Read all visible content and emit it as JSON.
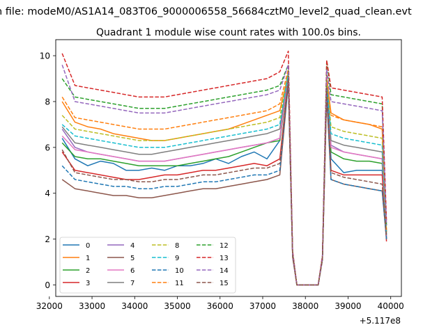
{
  "chart_data": {
    "type": "line",
    "suptitle": "n file: modeM0/AS1A14_083T06_9000006558_56684cztM0_level2_quad_clean.evt",
    "title": "Quadrant 1 module wise count rates with 100.0s bins.",
    "xlabel": "",
    "ylabel": "",
    "x_offset_label": "+5.117e8",
    "xlim": [
      32150,
      40250
    ],
    "ylim": [
      -0.5,
      10.7
    ],
    "xticks": [
      32000,
      33000,
      34000,
      35000,
      36000,
      37000,
      38000,
      39000,
      40000
    ],
    "yticks": [
      0,
      2,
      4,
      6,
      8,
      10
    ],
    "x": [
      32300,
      32600,
      32900,
      33200,
      33500,
      33800,
      34100,
      34400,
      34700,
      35000,
      35300,
      35600,
      35900,
      36200,
      36500,
      36800,
      37100,
      37400,
      37600,
      37700,
      37800,
      37900,
      38300,
      38400,
      38500,
      38600,
      38900,
      39200,
      39500,
      39800,
      39900
    ],
    "legend_position": "lower-left",
    "series": [
      {
        "name": "0",
        "color": "#1f77b4",
        "dash": "solid",
        "values": [
          6.4,
          5.5,
          5.2,
          5.4,
          5.3,
          5.0,
          5.0,
          5.1,
          5.0,
          5.2,
          5.2,
          5.3,
          5.5,
          5.3,
          5.6,
          5.8,
          5.5,
          6.3,
          9.1,
          1.3,
          0.0,
          0.0,
          0.0,
          1.2,
          8.8,
          5.5,
          4.9,
          5.0,
          5.0,
          5.0,
          2.0
        ]
      },
      {
        "name": "1",
        "color": "#ff7f0e",
        "dash": "solid",
        "values": [
          8.0,
          7.1,
          6.9,
          6.8,
          6.6,
          6.5,
          6.4,
          6.3,
          6.3,
          6.4,
          6.5,
          6.6,
          6.7,
          6.8,
          7.0,
          7.2,
          7.4,
          7.6,
          9.2,
          1.3,
          0.0,
          0.0,
          0.0,
          1.2,
          9.0,
          7.5,
          7.2,
          7.1,
          7.0,
          6.8,
          2.3
        ]
      },
      {
        "name": "2",
        "color": "#2ca02c",
        "dash": "solid",
        "values": [
          6.2,
          5.6,
          5.5,
          5.5,
          5.4,
          5.3,
          5.2,
          5.2,
          5.2,
          5.2,
          5.3,
          5.4,
          5.5,
          5.6,
          5.8,
          6.0,
          6.2,
          6.3,
          9.1,
          1.3,
          0.0,
          0.0,
          0.0,
          1.2,
          8.6,
          5.8,
          5.5,
          5.4,
          5.4,
          5.3,
          2.0
        ]
      },
      {
        "name": "3",
        "color": "#d62728",
        "dash": "solid",
        "values": [
          5.8,
          5.0,
          4.9,
          4.8,
          4.7,
          4.6,
          4.6,
          4.7,
          4.8,
          4.8,
          4.9,
          5.0,
          5.0,
          5.1,
          5.2,
          5.3,
          5.2,
          5.5,
          8.9,
          1.3,
          0.0,
          0.0,
          0.0,
          1.2,
          8.4,
          5.0,
          4.8,
          4.8,
          4.8,
          4.8,
          1.9
        ]
      },
      {
        "name": "4",
        "color": "#9467bd",
        "dash": "solid",
        "values": [
          6.8,
          6.0,
          5.8,
          5.7,
          5.6,
          5.5,
          5.4,
          5.4,
          5.4,
          5.5,
          5.6,
          5.7,
          5.8,
          5.9,
          6.0,
          6.1,
          6.2,
          6.4,
          9.2,
          1.3,
          0.0,
          0.0,
          0.0,
          1.2,
          8.8,
          6.1,
          5.8,
          5.7,
          5.6,
          5.5,
          2.1
        ]
      },
      {
        "name": "5",
        "color": "#8c564b",
        "dash": "solid",
        "values": [
          4.6,
          4.2,
          4.1,
          4.0,
          3.9,
          3.9,
          3.8,
          3.8,
          3.9,
          4.0,
          4.1,
          4.2,
          4.2,
          4.3,
          4.4,
          4.5,
          4.6,
          4.8,
          8.8,
          1.2,
          0.0,
          0.0,
          0.0,
          1.1,
          8.2,
          4.6,
          4.4,
          4.3,
          4.2,
          4.1,
          2.0
        ]
      },
      {
        "name": "6",
        "color": "#e377c2",
        "dash": "solid",
        "values": [
          6.5,
          5.9,
          5.8,
          5.7,
          5.6,
          5.5,
          5.4,
          5.4,
          5.4,
          5.5,
          5.6,
          5.7,
          5.8,
          5.9,
          6.0,
          6.1,
          6.2,
          6.4,
          9.2,
          1.3,
          0.0,
          0.0,
          0.0,
          1.2,
          8.8,
          6.0,
          5.8,
          5.7,
          5.6,
          5.5,
          2.1
        ]
      },
      {
        "name": "7",
        "color": "#7f7f7f",
        "dash": "solid",
        "values": [
          6.9,
          6.2,
          6.1,
          6.0,
          5.9,
          5.8,
          5.7,
          5.7,
          5.8,
          5.9,
          6.0,
          6.1,
          6.2,
          6.3,
          6.4,
          6.5,
          6.6,
          6.8,
          9.3,
          1.4,
          0.0,
          0.0,
          0.0,
          1.2,
          8.9,
          6.3,
          6.1,
          6.0,
          5.9,
          5.8,
          2.2
        ]
      },
      {
        "name": "8",
        "color": "#bcbd22",
        "dash": "dashed",
        "values": [
          7.4,
          6.8,
          6.7,
          6.6,
          6.5,
          6.4,
          6.3,
          6.3,
          6.3,
          6.4,
          6.5,
          6.6,
          6.7,
          6.8,
          6.9,
          7.0,
          7.1,
          7.3,
          9.3,
          1.4,
          0.0,
          0.0,
          0.0,
          1.2,
          9.0,
          6.9,
          6.7,
          6.6,
          6.5,
          6.4,
          2.3
        ]
      },
      {
        "name": "9",
        "color": "#17becf",
        "dash": "dashed",
        "values": [
          7.0,
          6.5,
          6.4,
          6.3,
          6.2,
          6.1,
          6.0,
          6.0,
          6.0,
          6.1,
          6.2,
          6.3,
          6.4,
          6.5,
          6.6,
          6.7,
          6.8,
          7.0,
          9.2,
          1.4,
          0.0,
          0.0,
          0.0,
          1.2,
          8.9,
          6.6,
          6.4,
          6.3,
          6.2,
          6.1,
          2.2
        ]
      },
      {
        "name": "10",
        "color": "#1f77b4",
        "dash": "dashed",
        "values": [
          5.2,
          4.6,
          4.5,
          4.4,
          4.3,
          4.3,
          4.2,
          4.2,
          4.3,
          4.3,
          4.4,
          4.5,
          4.5,
          4.6,
          4.7,
          4.8,
          4.8,
          5.0,
          8.9,
          1.3,
          0.0,
          0.0,
          0.0,
          1.1,
          8.5,
          4.6,
          4.4,
          4.3,
          4.2,
          4.1,
          2.0
        ]
      },
      {
        "name": "11",
        "color": "#ff7f0e",
        "dash": "dashed",
        "values": [
          8.2,
          7.3,
          7.2,
          7.1,
          7.0,
          6.9,
          6.8,
          6.8,
          6.8,
          6.9,
          7.0,
          7.1,
          7.2,
          7.3,
          7.4,
          7.5,
          7.6,
          7.9,
          9.4,
          1.4,
          0.0,
          0.0,
          0.0,
          1.2,
          9.1,
          7.4,
          7.2,
          7.1,
          7.0,
          6.9,
          2.4
        ]
      },
      {
        "name": "12",
        "color": "#2ca02c",
        "dash": "dashed",
        "values": [
          9.0,
          8.2,
          8.1,
          8.0,
          7.9,
          7.8,
          7.7,
          7.7,
          7.7,
          7.8,
          7.9,
          8.0,
          8.1,
          8.2,
          8.3,
          8.4,
          8.5,
          8.7,
          9.6,
          1.4,
          0.0,
          0.0,
          0.0,
          1.2,
          9.8,
          8.3,
          8.2,
          8.1,
          8.0,
          7.9,
          2.6
        ]
      },
      {
        "name": "13",
        "color": "#d62728",
        "dash": "dashed",
        "values": [
          10.1,
          8.7,
          8.6,
          8.5,
          8.4,
          8.3,
          8.2,
          8.2,
          8.2,
          8.3,
          8.4,
          8.5,
          8.6,
          8.7,
          8.8,
          8.9,
          9.0,
          9.3,
          10.2,
          1.5,
          0.0,
          0.0,
          0.0,
          1.3,
          9.8,
          8.6,
          8.5,
          8.4,
          8.3,
          8.2,
          2.8
        ]
      },
      {
        "name": "14",
        "color": "#9467bd",
        "dash": "dashed",
        "values": [
          9.6,
          8.0,
          7.9,
          7.8,
          7.7,
          7.6,
          7.5,
          7.5,
          7.5,
          7.6,
          7.7,
          7.8,
          7.9,
          8.0,
          8.1,
          8.2,
          8.3,
          8.5,
          9.6,
          1.4,
          0.0,
          0.0,
          0.0,
          1.2,
          9.4,
          8.0,
          7.9,
          7.8,
          7.7,
          7.6,
          2.6
        ]
      },
      {
        "name": "15",
        "color": "#8c564b",
        "dash": "dashed",
        "values": [
          5.9,
          4.9,
          4.8,
          4.7,
          4.6,
          4.6,
          4.5,
          4.5,
          4.6,
          4.6,
          4.7,
          4.8,
          4.8,
          4.9,
          5.0,
          5.1,
          5.1,
          5.3,
          9.0,
          1.3,
          0.0,
          0.0,
          0.0,
          1.1,
          8.6,
          4.9,
          4.7,
          4.6,
          4.5,
          4.4,
          2.1
        ]
      }
    ]
  }
}
